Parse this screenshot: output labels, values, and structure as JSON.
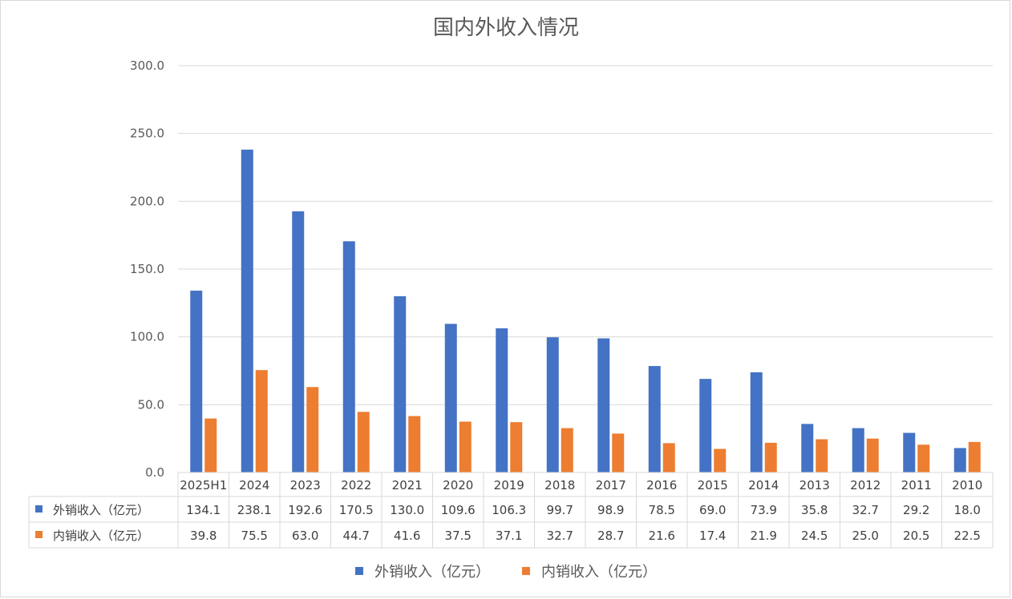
{
  "chart_data": {
    "type": "bar",
    "title": "国内外收入情况",
    "categories": [
      "2025H1",
      "2024",
      "2023",
      "2022",
      "2021",
      "2020",
      "2019",
      "2018",
      "2017",
      "2016",
      "2015",
      "2014",
      "2013",
      "2012",
      "2011",
      "2010"
    ],
    "series": [
      {
        "name": "外销收入（亿元）",
        "color": "#4472c4",
        "values": [
          134.1,
          238.1,
          192.6,
          170.5,
          130.0,
          109.6,
          106.3,
          99.7,
          98.9,
          78.5,
          69.0,
          73.9,
          35.8,
          32.7,
          29.2,
          18.0
        ],
        "labels": [
          "134.1",
          "238.1",
          "192.6",
          "170.5",
          "130.0",
          "109.6",
          "106.3",
          "99.7",
          "98.9",
          "78.5",
          "69.0",
          "73.9",
          "35.8",
          "32.7",
          "29.2",
          "18.0"
        ]
      },
      {
        "name": "内销收入（亿元）",
        "color": "#ed7d31",
        "values": [
          39.8,
          75.5,
          63.0,
          44.7,
          41.6,
          37.5,
          37.1,
          32.7,
          28.7,
          21.6,
          17.4,
          21.9,
          24.5,
          25.0,
          20.5,
          22.5
        ],
        "labels": [
          "39.8",
          "75.5",
          "63.0",
          "44.7",
          "41.6",
          "37.5",
          "37.1",
          "32.7",
          "28.7",
          "21.6",
          "17.4",
          "21.9",
          "24.5",
          "25.0",
          "20.5",
          "22.5"
        ]
      }
    ],
    "ylim": [
      0,
      300
    ],
    "yticks": [
      "0.0",
      "50.0",
      "100.0",
      "150.0",
      "200.0",
      "250.0",
      "300.0"
    ],
    "grid": true,
    "data_table": true,
    "legend_position": "bottom"
  }
}
